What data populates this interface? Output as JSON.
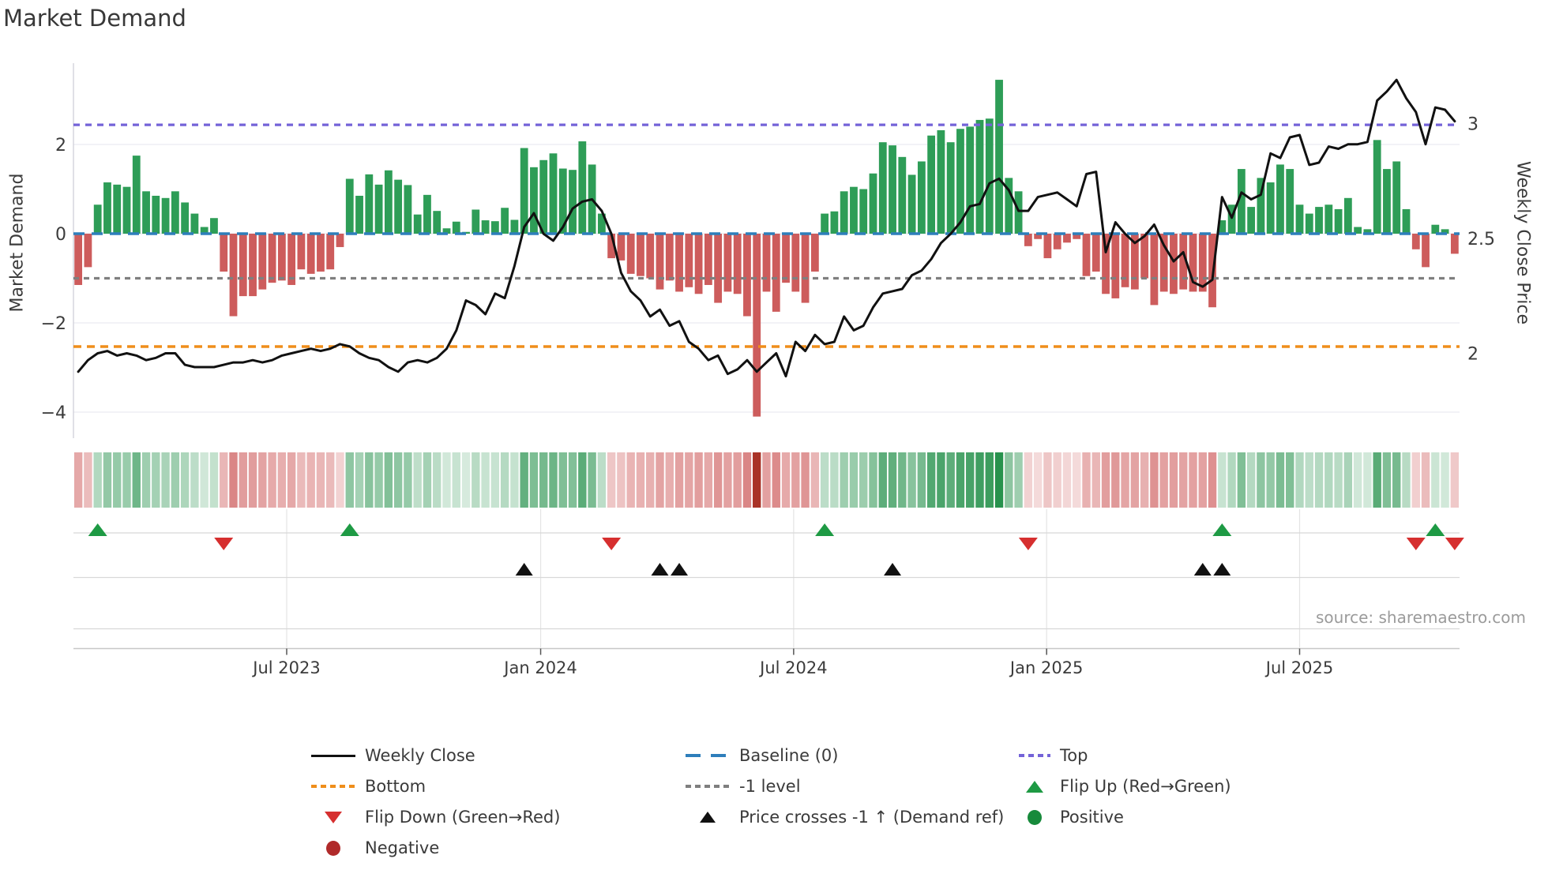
{
  "title": "Market Demand",
  "source": "source: sharemaestro.com",
  "axes": {
    "left": {
      "label": "Market Demand",
      "tick_labels": [
        "2",
        "0",
        "−2",
        "−4"
      ],
      "tick_values": [
        2,
        0,
        -2,
        -4
      ]
    },
    "right": {
      "label": "Weekly Close Price",
      "tick_labels": [
        "3",
        "2.5",
        "2"
      ],
      "tick_values": [
        3,
        2.5,
        2
      ]
    },
    "x": {
      "tick_labels": [
        "Jul 2023",
        "Jan 2024",
        "Jul 2024",
        "Jan 2025",
        "Jul 2025"
      ],
      "tick_week_index": [
        21.5,
        47.7,
        73.8,
        99.9,
        126.0
      ]
    }
  },
  "colors": {
    "positive_bar": "#2e9d57",
    "negative_bar": "#cd5c5c",
    "price_line": "#111111",
    "baseline": "#2e7ebb",
    "top_line": "#7463d8",
    "bottom_line": "#ef8e1b",
    "minus1_line": "#7f7f7f",
    "flip_up": "#1e9a44",
    "flip_down": "#d62f2f",
    "price_cross": "#111111",
    "deep_negative": "#a93226",
    "grid": "#ebebf2"
  },
  "legend": {
    "items": [
      {
        "label": "Weekly Close",
        "swatch": "line-solid-black"
      },
      {
        "label": "Baseline (0)",
        "swatch": "line-dashed-blue"
      },
      {
        "label": "Top",
        "swatch": "line-dotted-purple"
      },
      {
        "label": "Bottom",
        "swatch": "line-dotted-orange"
      },
      {
        "label": "-1 level",
        "swatch": "line-dotted-gray"
      },
      {
        "label": "Flip Up (Red→Green)",
        "swatch": "triangle-up-green"
      },
      {
        "label": "Flip Down (Green→Red)",
        "swatch": "triangle-down-red"
      },
      {
        "label": "Price crosses -1 ↑  (Demand ref)",
        "swatch": "triangle-up-black"
      },
      {
        "label": "Positive",
        "swatch": "circle-green"
      },
      {
        "label": "Negative",
        "swatch": "circle-darkred"
      }
    ]
  },
  "chart_data": {
    "type": "bar+line",
    "frequency": "weekly",
    "x_range": [
      "Feb 2023",
      "Oct 2025"
    ],
    "title": "Market Demand",
    "ylabel_left": "Market Demand",
    "ylabel_right": "Weekly Close Price",
    "ylim_left": [
      -4.35,
      3.8
    ],
    "ylim_right": [
      1.72,
      3.27
    ],
    "grid": true,
    "legend_position": "bottom",
    "levels": {
      "baseline": 0,
      "minus1": -1,
      "top": 2.44,
      "bottom": -2.53
    },
    "series": [
      {
        "name": "Market Demand",
        "type": "bar",
        "axis": "left",
        "values": [
          -1.15,
          -0.75,
          0.65,
          1.15,
          1.1,
          1.05,
          1.75,
          0.95,
          0.85,
          0.8,
          0.95,
          0.7,
          0.45,
          0.15,
          0.35,
          -0.85,
          -1.85,
          -1.4,
          -1.4,
          -1.25,
          -1.1,
          -1.05,
          -1.15,
          -0.8,
          -0.9,
          -0.85,
          -0.8,
          -0.3,
          1.23,
          0.85,
          1.33,
          1.1,
          1.42,
          1.21,
          1.09,
          0.43,
          0.87,
          0.51,
          0.12,
          0.27,
          0.04,
          0.54,
          0.3,
          0.28,
          0.58,
          0.31,
          1.92,
          1.49,
          1.65,
          1.8,
          1.46,
          1.43,
          2.07,
          1.55,
          0.45,
          -0.55,
          -0.6,
          -0.9,
          -0.95,
          -1.0,
          -1.25,
          -1.05,
          -1.3,
          -1.2,
          -1.35,
          -1.15,
          -1.55,
          -1.3,
          -1.35,
          -1.85,
          -4.1,
          -1.3,
          -1.75,
          -1.1,
          -1.3,
          -1.55,
          -0.85,
          0.45,
          0.5,
          0.95,
          1.05,
          1.0,
          1.35,
          2.05,
          1.98,
          1.72,
          1.32,
          1.62,
          2.2,
          2.32,
          2.05,
          2.35,
          2.4,
          2.55,
          2.58,
          3.45,
          1.25,
          0.95,
          -0.28,
          -0.12,
          -0.55,
          -0.35,
          -0.2,
          -0.12,
          -0.95,
          -0.85,
          -1.35,
          -1.45,
          -1.2,
          -1.25,
          -1.0,
          -1.6,
          -1.3,
          -1.35,
          -1.25,
          -1.3,
          -1.3,
          -1.65,
          0.3,
          0.65,
          1.45,
          0.6,
          1.25,
          1.15,
          1.55,
          1.45,
          0.65,
          0.45,
          0.6,
          0.65,
          0.55,
          0.8,
          0.15,
          0.1,
          2.1,
          1.45,
          1.62,
          0.55,
          -0.35,
          -0.75,
          0.2,
          0.1,
          -0.45
        ]
      },
      {
        "name": "Weekly Close",
        "type": "line",
        "axis": "right",
        "values": [
          1.92,
          1.97,
          2.0,
          2.01,
          1.99,
          2.0,
          1.99,
          1.97,
          1.98,
          2.0,
          2.0,
          1.95,
          1.94,
          1.94,
          1.94,
          1.95,
          1.96,
          1.96,
          1.97,
          1.96,
          1.97,
          1.99,
          2.0,
          2.01,
          2.02,
          2.01,
          2.02,
          2.04,
          2.03,
          2.0,
          1.98,
          1.97,
          1.94,
          1.92,
          1.96,
          1.97,
          1.96,
          1.98,
          2.02,
          2.1,
          2.23,
          2.21,
          2.17,
          2.26,
          2.24,
          2.38,
          2.55,
          2.61,
          2.52,
          2.49,
          2.55,
          2.63,
          2.66,
          2.67,
          2.62,
          2.52,
          2.35,
          2.27,
          2.23,
          2.16,
          2.19,
          2.12,
          2.14,
          2.05,
          2.02,
          1.97,
          1.99,
          1.91,
          1.93,
          1.97,
          1.92,
          1.96,
          2.0,
          1.9,
          2.05,
          2.01,
          2.08,
          2.04,
          2.05,
          2.16,
          2.1,
          2.12,
          2.2,
          2.26,
          2.27,
          2.28,
          2.34,
          2.36,
          2.41,
          2.48,
          2.52,
          2.57,
          2.64,
          2.65,
          2.74,
          2.76,
          2.71,
          2.62,
          2.62,
          2.68,
          2.69,
          2.7,
          2.67,
          2.64,
          2.78,
          2.79,
          2.44,
          2.57,
          2.52,
          2.48,
          2.51,
          2.56,
          2.47,
          2.4,
          2.44,
          2.31,
          2.29,
          2.32,
          2.68,
          2.59,
          2.7,
          2.67,
          2.69,
          2.87,
          2.85,
          2.94,
          2.95,
          2.82,
          2.83,
          2.9,
          2.89,
          2.91,
          2.91,
          2.92,
          3.1,
          3.14,
          3.19,
          3.11,
          3.05,
          2.91,
          3.07,
          3.06,
          3.01
        ]
      }
    ],
    "markers": {
      "flip_up_weeks": [
        2,
        28,
        77,
        118,
        140
      ],
      "flip_down_weeks": [
        15,
        55,
        98,
        138,
        142
      ],
      "price_cross_weeks": [
        46,
        60,
        62,
        84,
        116,
        118
      ]
    },
    "heatmap": "demand values rendered as red/green intensity strip below main panel"
  }
}
